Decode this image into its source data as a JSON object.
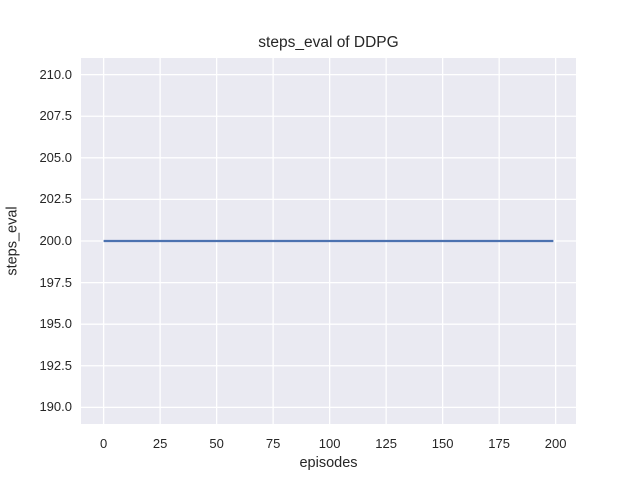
{
  "chart_data": {
    "type": "line",
    "title": "steps_eval of DDPG",
    "xlabel": "episodes",
    "ylabel": "steps_eval",
    "xlim": [
      -10,
      209
    ],
    "ylim": [
      189,
      211
    ],
    "xticks": [
      0,
      25,
      50,
      75,
      100,
      125,
      150,
      175,
      200
    ],
    "xtick_labels": [
      "0",
      "25",
      "50",
      "75",
      "100",
      "125",
      "150",
      "175",
      "200"
    ],
    "yticks": [
      190.0,
      192.5,
      195.0,
      197.5,
      200.0,
      202.5,
      205.0,
      207.5,
      210.0
    ],
    "ytick_labels": [
      "190.0",
      "192.5",
      "195.0",
      "197.5",
      "200.0",
      "202.5",
      "205.0",
      "207.5",
      "210.0"
    ],
    "grid": true,
    "legend": null,
    "series": [
      {
        "name": "steps_eval",
        "x": [
          0,
          199
        ],
        "y": [
          200.0,
          200.0
        ],
        "color": "#4c72b0",
        "line_width": 2.2
      }
    ],
    "colors": {
      "plot_background": "#eaeaf2",
      "grid_line": "#ffffff",
      "text": "#262626",
      "figure_background": "#ffffff"
    }
  }
}
